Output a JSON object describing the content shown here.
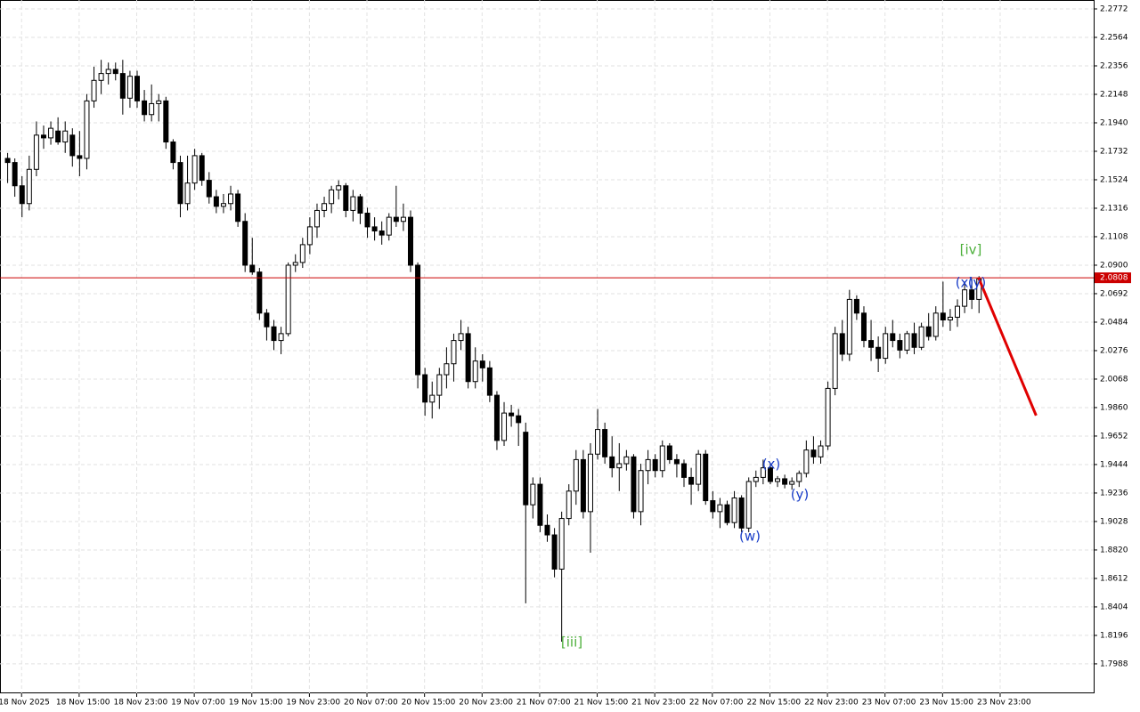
{
  "chart_data": {
    "type": "candlestick",
    "ylim": [
      1.7773,
      2.2772
    ],
    "xlim": [
      -1,
      151
    ],
    "yticks": [
      2.2772,
      2.2564,
      2.2356,
      2.2148,
      {
        "value": 2.194,
        "label": "2.1940"
      },
      2.1732,
      2.1524,
      2.1316,
      2.1108,
      {
        "value": 2.09,
        "label": "2.0900"
      },
      2.0692,
      2.0484,
      2.0276,
      2.0068,
      {
        "value": 1.986,
        "label": "1.9860"
      },
      1.9652,
      1.9444,
      1.9236,
      1.9028,
      {
        "value": 1.882,
        "label": "1.8820"
      },
      1.8612,
      1.8404,
      1.8196,
      1.7988
    ],
    "xticks": [
      {
        "value": 2,
        "label": "18 Nov 2025"
      },
      {
        "value": 10,
        "label": "18 Nov 15:00"
      },
      {
        "value": 18,
        "label": "18 Nov 23:00"
      },
      {
        "value": 26,
        "label": "19 Nov 07:00"
      },
      {
        "value": 34,
        "label": "19 Nov 15:00"
      },
      {
        "value": 42,
        "label": "19 Nov 23:00"
      },
      {
        "value": 50,
        "label": "20 Nov 07:00"
      },
      {
        "value": 58,
        "label": "20 Nov 15:00"
      },
      {
        "value": 66,
        "label": "20 Nov 23:00"
      },
      {
        "value": 74,
        "label": "21 Nov 07:00"
      },
      {
        "value": 82,
        "label": "21 Nov 15:00"
      },
      {
        "value": 90,
        "label": "21 Nov 23:00"
      },
      {
        "value": 98,
        "label": "22 Nov 07:00"
      },
      {
        "value": 106,
        "label": "22 Nov 15:00"
      },
      {
        "value": 114,
        "label": "22 Nov 23:00"
      },
      {
        "value": 122,
        "label": "23 Nov 07:00"
      },
      {
        "value": 130,
        "label": "23 Nov 15:00"
      },
      {
        "value": 138,
        "label": "23 Nov 23:00"
      }
    ],
    "grid": true,
    "up_color": "#ffffff",
    "down_color": "#000000",
    "current_price": {
      "value": 2.0808,
      "label": "2.0808",
      "color": "#cc0000"
    },
    "projection": {
      "x": [
        135,
        143
      ],
      "y": [
        2.0808,
        1.9802
      ],
      "color": "#e00000"
    },
    "annotations": [
      {
        "text": "[iv]",
        "color": "#4caf3a"
      },
      {
        "text": "[iii]",
        "color": "#4caf3a"
      },
      {
        "text": "(x)",
        "color": "#1a3ec8"
      },
      {
        "text": "(y)",
        "color": "#1a3ec8"
      },
      {
        "text": "(w)",
        "color": "#1a3ec8"
      },
      {
        "text": "(x)",
        "color": "#1a3ec8"
      },
      {
        "text": "(y)",
        "color": "#1a3ec8"
      }
    ],
    "candles": [
      [
        2.168,
        2.172,
        2.15,
        2.165
      ],
      [
        2.165,
        2.168,
        2.14,
        2.148
      ],
      [
        2.148,
        2.155,
        2.125,
        2.135
      ],
      [
        2.135,
        2.17,
        2.13,
        2.16
      ],
      [
        2.16,
        2.195,
        2.155,
        2.185
      ],
      [
        2.185,
        2.192,
        2.175,
        2.183
      ],
      [
        2.183,
        2.195,
        2.178,
        2.19
      ],
      [
        2.188,
        2.198,
        2.178,
        2.18
      ],
      [
        2.18,
        2.195,
        2.172,
        2.188
      ],
      [
        2.185,
        2.19,
        2.162,
        2.17
      ],
      [
        2.17,
        2.188,
        2.155,
        2.168
      ],
      [
        2.168,
        2.215,
        2.16,
        2.21
      ],
      [
        2.21,
        2.235,
        2.205,
        2.225
      ],
      [
        2.225,
        2.24,
        2.215,
        2.23
      ],
      [
        2.23,
        2.238,
        2.222,
        2.233
      ],
      [
        2.233,
        2.238,
        2.225,
        2.23
      ],
      [
        2.23,
        2.24,
        2.2,
        2.212
      ],
      [
        2.212,
        2.232,
        2.205,
        2.228
      ],
      [
        2.228,
        2.232,
        2.205,
        2.21
      ],
      [
        2.21,
        2.218,
        2.195,
        2.2
      ],
      [
        2.2,
        2.222,
        2.195,
        2.208
      ],
      [
        2.208,
        2.215,
        2.195,
        2.21
      ],
      [
        2.21,
        2.213,
        2.175,
        2.18
      ],
      [
        2.18,
        2.182,
        2.16,
        2.165
      ],
      [
        2.165,
        2.17,
        2.125,
        2.135
      ],
      [
        2.135,
        2.17,
        2.13,
        2.15
      ],
      [
        2.15,
        2.175,
        2.145,
        2.17
      ],
      [
        2.17,
        2.172,
        2.148,
        2.152
      ],
      [
        2.152,
        2.158,
        2.135,
        2.14
      ],
      [
        2.14,
        2.145,
        2.128,
        2.133
      ],
      [
        2.133,
        2.142,
        2.128,
        2.135
      ],
      [
        2.135,
        2.148,
        2.13,
        2.142
      ],
      [
        2.142,
        2.145,
        2.118,
        2.122
      ],
      [
        2.122,
        2.128,
        2.085,
        2.09
      ],
      [
        2.09,
        2.11,
        2.083,
        2.085
      ],
      [
        2.085,
        2.088,
        2.05,
        2.055
      ],
      [
        2.055,
        2.058,
        2.035,
        2.045
      ],
      [
        2.045,
        2.05,
        2.028,
        2.035
      ],
      [
        2.035,
        2.045,
        2.025,
        2.04
      ],
      [
        2.04,
        2.092,
        2.038,
        2.09
      ],
      [
        2.09,
        2.098,
        2.085,
        2.092
      ],
      [
        2.092,
        2.11,
        2.088,
        2.105
      ],
      [
        2.105,
        2.125,
        2.098,
        2.118
      ],
      [
        2.118,
        2.135,
        2.11,
        2.13
      ],
      [
        2.13,
        2.14,
        2.125,
        2.135
      ],
      [
        2.135,
        2.148,
        2.128,
        2.145
      ],
      [
        2.145,
        2.152,
        2.138,
        2.148
      ],
      [
        2.148,
        2.15,
        2.125,
        2.13
      ],
      [
        2.13,
        2.145,
        2.122,
        2.14
      ],
      [
        2.14,
        2.142,
        2.12,
        2.128
      ],
      [
        2.128,
        2.132,
        2.11,
        2.118
      ],
      [
        2.118,
        2.125,
        2.108,
        2.115
      ],
      [
        2.115,
        2.122,
        2.105,
        2.112
      ],
      [
        2.112,
        2.128,
        2.108,
        2.125
      ],
      [
        2.125,
        2.148,
        2.118,
        2.122
      ],
      [
        2.122,
        2.135,
        2.115,
        2.125
      ],
      [
        2.125,
        2.13,
        2.085,
        2.09
      ],
      [
        2.09,
        2.092,
        2.0,
        2.01
      ],
      [
        2.01,
        2.015,
        1.98,
        1.99
      ],
      [
        1.99,
        2.005,
        1.978,
        1.995
      ],
      [
        1.995,
        2.015,
        1.985,
        2.01
      ],
      [
        2.01,
        2.03,
        2.0,
        2.018
      ],
      [
        2.018,
        2.04,
        2.005,
        2.035
      ],
      [
        2.035,
        2.05,
        2.028,
        2.04
      ],
      [
        2.04,
        2.045,
        2.0,
        2.005
      ],
      [
        2.005,
        2.03,
        2.0,
        2.02
      ],
      [
        2.02,
        2.025,
        2.005,
        2.015
      ],
      [
        2.015,
        2.02,
        1.99,
        1.995
      ],
      [
        1.995,
        1.998,
        1.955,
        1.962
      ],
      [
        1.962,
        1.99,
        1.958,
        1.982
      ],
      [
        1.982,
        1.988,
        1.972,
        1.98
      ],
      [
        1.98,
        1.985,
        1.958,
        1.975
      ],
      [
        1.968,
        1.975,
        1.843,
        1.915
      ],
      [
        1.915,
        1.935,
        1.905,
        1.93
      ],
      [
        1.93,
        1.935,
        1.895,
        1.9
      ],
      [
        1.9,
        1.908,
        1.888,
        1.893
      ],
      [
        1.893,
        1.898,
        1.862,
        1.868
      ],
      [
        1.868,
        1.91,
        1.815,
        1.905
      ],
      [
        1.905,
        1.93,
        1.9,
        1.925
      ],
      [
        1.925,
        1.955,
        1.915,
        1.948
      ],
      [
        1.948,
        1.955,
        1.905,
        1.91
      ],
      [
        1.91,
        1.96,
        1.88,
        1.952
      ],
      [
        1.952,
        1.985,
        1.948,
        1.97
      ],
      [
        1.97,
        1.975,
        1.945,
        1.95
      ],
      [
        1.95,
        1.965,
        1.935,
        1.942
      ],
      [
        1.942,
        1.96,
        1.925,
        1.945
      ],
      [
        1.945,
        1.955,
        1.94,
        1.95
      ],
      [
        1.95,
        1.952,
        1.905,
        1.91
      ],
      [
        1.91,
        1.945,
        1.9,
        1.94
      ],
      [
        1.94,
        1.955,
        1.93,
        1.948
      ],
      [
        1.948,
        1.952,
        1.935,
        1.94
      ],
      [
        1.94,
        1.962,
        1.935,
        1.958
      ],
      [
        1.958,
        1.96,
        1.945,
        1.948
      ],
      [
        1.948,
        1.952,
        1.935,
        1.945
      ],
      [
        1.945,
        1.948,
        1.928,
        1.935
      ],
      [
        1.935,
        1.942,
        1.915,
        1.93
      ],
      [
        1.93,
        1.955,
        1.925,
        1.952
      ],
      [
        1.952,
        1.955,
        1.915,
        1.918
      ],
      [
        1.918,
        1.925,
        1.905,
        1.91
      ],
      [
        1.91,
        1.92,
        1.898,
        1.915
      ],
      [
        1.915,
        1.918,
        1.9,
        1.902
      ],
      [
        1.902,
        1.925,
        1.898,
        1.92
      ],
      [
        1.92,
        1.922,
        1.895,
        1.898
      ],
      [
        1.898,
        1.935,
        1.895,
        1.932
      ],
      [
        1.932,
        1.94,
        1.928,
        1.935
      ],
      [
        1.935,
        1.948,
        1.93,
        1.942
      ],
      [
        1.942,
        1.945,
        1.93,
        1.932
      ],
      [
        1.932,
        1.936,
        1.928,
        1.934
      ],
      [
        1.934,
        1.937,
        1.927,
        1.93
      ],
      [
        1.93,
        1.935,
        1.926,
        1.932
      ],
      [
        1.932,
        1.94,
        1.928,
        1.938
      ],
      [
        1.938,
        1.962,
        1.935,
        1.955
      ],
      [
        1.955,
        1.965,
        1.945,
        1.95
      ],
      [
        1.95,
        1.962,
        1.945,
        1.958
      ],
      [
        1.958,
        2.005,
        1.955,
        2.0
      ],
      [
        2.0,
        2.045,
        1.995,
        2.04
      ],
      [
        2.04,
        2.05,
        2.02,
        2.025
      ],
      [
        2.025,
        2.072,
        2.02,
        2.065
      ],
      [
        2.065,
        2.068,
        2.05,
        2.055
      ],
      [
        2.055,
        2.06,
        2.03,
        2.035
      ],
      [
        2.035,
        2.05,
        2.02,
        2.03
      ],
      [
        2.03,
        2.038,
        2.012,
        2.022
      ],
      [
        2.022,
        2.045,
        2.018,
        2.04
      ],
      [
        2.04,
        2.05,
        2.03,
        2.035
      ],
      [
        2.035,
        2.04,
        2.022,
        2.028
      ],
      [
        2.028,
        2.042,
        2.025,
        2.04
      ],
      [
        2.04,
        2.048,
        2.025,
        2.03
      ],
      [
        2.03,
        2.048,
        2.028,
        2.045
      ],
      [
        2.045,
        2.055,
        2.035,
        2.038
      ],
      [
        2.038,
        2.06,
        2.035,
        2.055
      ],
      [
        2.055,
        2.078,
        2.045,
        2.05
      ],
      [
        2.05,
        2.058,
        2.042,
        2.052
      ],
      [
        2.052,
        2.065,
        2.045,
        2.06
      ],
      [
        2.06,
        2.078,
        2.055,
        2.072
      ],
      [
        2.072,
        2.08,
        2.058,
        2.065
      ],
      [
        2.065,
        2.082,
        2.055,
        2.08
      ]
    ]
  }
}
